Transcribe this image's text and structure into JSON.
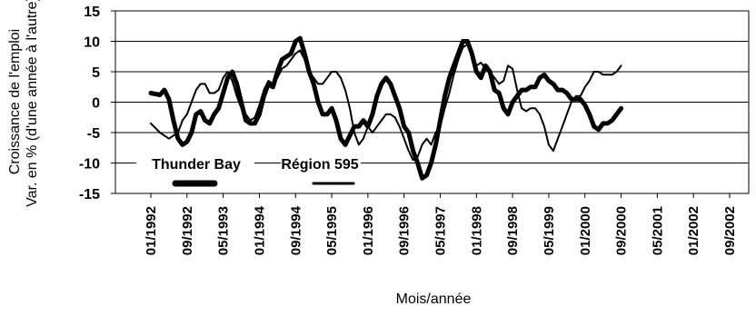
{
  "chart_data": {
    "type": "line",
    "xlabel": "Mois/année",
    "ylabel": [
      "Croissance de l'emploi",
      "Var. en % (d'une année à l'autre)"
    ],
    "ylim": [
      -15,
      15
    ],
    "yticks": [
      15,
      10,
      5,
      0,
      -5,
      -10,
      -15
    ],
    "grid": "horizontal",
    "legend": "inside-bottom-left",
    "x_tick_labels": [
      "01/1992",
      "09/1992",
      "05/1993",
      "01/1994",
      "09/1994",
      "05/1995",
      "01/1996",
      "09/1996",
      "05/1997",
      "01/1998",
      "09/1998",
      "05/1999",
      "01/2000",
      "09/2000",
      "05/2001",
      "01/2002",
      "09/2002"
    ],
    "x_tick_months": [
      0,
      8,
      16,
      24,
      32,
      40,
      48,
      56,
      64,
      72,
      80,
      88,
      96,
      104,
      112,
      120,
      128
    ],
    "series": [
      {
        "name": "Thunder Bay",
        "style": "thick",
        "points": [
          [
            0,
            1.5
          ],
          [
            2,
            1.2
          ],
          [
            3,
            2
          ],
          [
            4,
            0.5
          ],
          [
            5,
            -3
          ],
          [
            6,
            -6
          ],
          [
            7,
            -7
          ],
          [
            8,
            -6.5
          ],
          [
            9,
            -5
          ],
          [
            10,
            -2
          ],
          [
            11,
            -1.5
          ],
          [
            12,
            -3
          ],
          [
            13,
            -3.5
          ],
          [
            14,
            -2
          ],
          [
            15,
            -1
          ],
          [
            16,
            1.5
          ],
          [
            17,
            4
          ],
          [
            18,
            5
          ],
          [
            19,
            3
          ],
          [
            20,
            0
          ],
          [
            21,
            -3
          ],
          [
            22,
            -3.5
          ],
          [
            23,
            -3.5
          ],
          [
            24,
            -2
          ],
          [
            25,
            1
          ],
          [
            26,
            3
          ],
          [
            27,
            2.5
          ],
          [
            28,
            5
          ],
          [
            29,
            7
          ],
          [
            30,
            7.5
          ],
          [
            31,
            8
          ],
          [
            32,
            10
          ],
          [
            33,
            10.5
          ],
          [
            34,
            8
          ],
          [
            35,
            5
          ],
          [
            36,
            3
          ],
          [
            37,
            0
          ],
          [
            38,
            -2
          ],
          [
            39,
            -2
          ],
          [
            40,
            -1
          ],
          [
            41,
            -3
          ],
          [
            42,
            -6
          ],
          [
            43,
            -7
          ],
          [
            44,
            -5.5
          ],
          [
            45,
            -4
          ],
          [
            46,
            -4
          ],
          [
            47,
            -3
          ],
          [
            48,
            -4
          ],
          [
            49,
            -2
          ],
          [
            50,
            1
          ],
          [
            51,
            3
          ],
          [
            52,
            4
          ],
          [
            53,
            3
          ],
          [
            54,
            1
          ],
          [
            55,
            -1
          ],
          [
            56,
            -4
          ],
          [
            57,
            -5
          ],
          [
            58,
            -8
          ],
          [
            59,
            -10
          ],
          [
            60,
            -12.5
          ],
          [
            61,
            -12
          ],
          [
            62,
            -10
          ],
          [
            63,
            -7
          ],
          [
            64,
            -3
          ],
          [
            65,
            1
          ],
          [
            66,
            4
          ],
          [
            67,
            6
          ],
          [
            68,
            8
          ],
          [
            69,
            10
          ],
          [
            70,
            10
          ],
          [
            71,
            8
          ],
          [
            72,
            5
          ],
          [
            73,
            4
          ],
          [
            74,
            6
          ],
          [
            75,
            5
          ],
          [
            76,
            2
          ],
          [
            77,
            1.5
          ],
          [
            78,
            -1
          ],
          [
            79,
            -2
          ],
          [
            80,
            0
          ],
          [
            81,
            1
          ],
          [
            82,
            2
          ],
          [
            83,
            2
          ],
          [
            84,
            2.5
          ],
          [
            85,
            2.5
          ],
          [
            86,
            4
          ],
          [
            87,
            4.5
          ],
          [
            88,
            3.5
          ],
          [
            89,
            3
          ],
          [
            90,
            2
          ],
          [
            91,
            2
          ],
          [
            92,
            1.5
          ],
          [
            93,
            0.5
          ],
          [
            94,
            0.5
          ],
          [
            95,
            0.5
          ],
          [
            96,
            -0.5
          ],
          [
            97,
            -2
          ],
          [
            98,
            -4
          ],
          [
            99,
            -4.5
          ],
          [
            100,
            -3.5
          ],
          [
            101,
            -3.5
          ],
          [
            102,
            -3
          ],
          [
            103,
            -2
          ],
          [
            104,
            -1
          ]
        ]
      },
      {
        "name": "Région 595",
        "style": "thin",
        "points": [
          [
            0,
            -3.5
          ],
          [
            2,
            -5
          ],
          [
            3,
            -5.5
          ],
          [
            4,
            -6
          ],
          [
            5,
            -5.5
          ],
          [
            6,
            -5
          ],
          [
            7,
            -3
          ],
          [
            8,
            -2
          ],
          [
            9,
            0
          ],
          [
            10,
            2
          ],
          [
            11,
            3
          ],
          [
            12,
            3
          ],
          [
            13,
            1.5
          ],
          [
            14,
            1.5
          ],
          [
            15,
            2
          ],
          [
            16,
            4
          ],
          [
            17,
            5
          ],
          [
            18,
            3.5
          ],
          [
            19,
            1
          ],
          [
            20,
            -1
          ],
          [
            21,
            -2
          ],
          [
            22,
            -3
          ],
          [
            23,
            -2.5
          ],
          [
            24,
            -0.5
          ],
          [
            25,
            2
          ],
          [
            26,
            3.5
          ],
          [
            27,
            3
          ],
          [
            28,
            4
          ],
          [
            29,
            5.5
          ],
          [
            30,
            6
          ],
          [
            31,
            7
          ],
          [
            32,
            8
          ],
          [
            33,
            8.5
          ],
          [
            34,
            7
          ],
          [
            35,
            5
          ],
          [
            36,
            4
          ],
          [
            37,
            3
          ],
          [
            38,
            3
          ],
          [
            39,
            4
          ],
          [
            40,
            5
          ],
          [
            41,
            5
          ],
          [
            42,
            4
          ],
          [
            43,
            2
          ],
          [
            44,
            -1
          ],
          [
            45,
            -5
          ],
          [
            46,
            -7
          ],
          [
            47,
            -6
          ],
          [
            48,
            -4
          ],
          [
            49,
            -5
          ],
          [
            50,
            -4
          ],
          [
            51,
            -3
          ],
          [
            52,
            -2
          ],
          [
            53,
            -2
          ],
          [
            54,
            -2.5
          ],
          [
            55,
            -4
          ],
          [
            56,
            -6
          ],
          [
            57,
            -8
          ],
          [
            58,
            -9.5
          ],
          [
            59,
            -9
          ],
          [
            60,
            -7
          ],
          [
            61,
            -6
          ],
          [
            62,
            -7
          ],
          [
            63,
            -5
          ],
          [
            64,
            -4
          ],
          [
            65,
            -1
          ],
          [
            66,
            1.5
          ],
          [
            67,
            4.5
          ],
          [
            68,
            7
          ],
          [
            69,
            9
          ],
          [
            70,
            9.5
          ],
          [
            71,
            8
          ],
          [
            72,
            6
          ],
          [
            73,
            6.5
          ],
          [
            74,
            5.5
          ],
          [
            75,
            5
          ],
          [
            76,
            4
          ],
          [
            77,
            3
          ],
          [
            78,
            3.5
          ],
          [
            79,
            6
          ],
          [
            80,
            5.5
          ],
          [
            81,
            2
          ],
          [
            82,
            -1
          ],
          [
            83,
            -1.5
          ],
          [
            84,
            -1
          ],
          [
            85,
            -1
          ],
          [
            86,
            -2
          ],
          [
            87,
            -4
          ],
          [
            88,
            -7
          ],
          [
            89,
            -8
          ],
          [
            90,
            -6
          ],
          [
            91,
            -4
          ],
          [
            92,
            -2
          ],
          [
            93,
            0
          ],
          [
            94,
            1
          ],
          [
            95,
            1
          ],
          [
            96,
            2.5
          ],
          [
            97,
            3.5
          ],
          [
            98,
            5
          ],
          [
            99,
            5
          ],
          [
            100,
            4.5
          ],
          [
            101,
            4.5
          ],
          [
            102,
            4.5
          ],
          [
            103,
            5
          ],
          [
            104,
            6
          ]
        ]
      }
    ]
  }
}
